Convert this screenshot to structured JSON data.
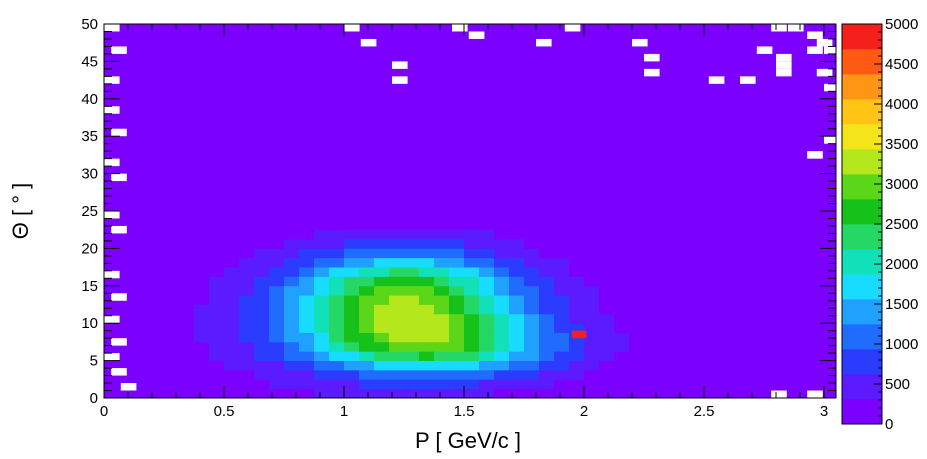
{
  "chart_data": {
    "type": "heatmap",
    "title": "",
    "xlabel": "P [ GeV/c ]",
    "ylabel": "Θ [ ° ]",
    "xlim": [
      0,
      3.05
    ],
    "ylim": [
      0,
      50
    ],
    "x_ticks": [
      "0",
      "0.5",
      "1",
      "1.5",
      "2",
      "2.5",
      "3"
    ],
    "y_ticks": [
      "0",
      "5",
      "10",
      "15",
      "20",
      "25",
      "30",
      "35",
      "40",
      "45",
      "50"
    ],
    "grid": false,
    "colorbar": {
      "min": 0,
      "max": 5000,
      "ticks": [
        "0",
        "500",
        "1000",
        "1500",
        "2000",
        "2500",
        "3000",
        "3500",
        "4000",
        "4500",
        "5000"
      ],
      "colors": [
        "#7b00ff",
        "#5c1bff",
        "#2c3cff",
        "#1f6cff",
        "#20a0ff",
        "#17dcff",
        "#12e0b8",
        "#25d866",
        "#16c11a",
        "#5cd618",
        "#b4e71c",
        "#f3e51a",
        "#ffc414",
        "#ff9515",
        "#ff5a14",
        "#f5201c"
      ]
    },
    "background_value": 60,
    "density_blobs": [
      {
        "p": 1.25,
        "theta": 13.5,
        "sigma_p": 0.32,
        "sigma_theta": 4.2,
        "amplitude": 2450
      },
      {
        "p": 1.38,
        "theta": 7.0,
        "sigma_p": 0.36,
        "sigma_theta": 2.8,
        "amplitude": 1750
      },
      {
        "p": 1.2,
        "theta": 10.0,
        "sigma_p": 0.55,
        "sigma_theta": 7.0,
        "amplitude": 700
      }
    ],
    "hot_bins": [
      {
        "p": 1.98,
        "theta": 8.5,
        "value": 5000
      }
    ],
    "empty_bins": [
      {
        "p": 0.0,
        "theta": 49.5
      },
      {
        "p": 0.03,
        "theta": 46.5
      },
      {
        "p": 0.0,
        "theta": 42.5
      },
      {
        "p": 0.0,
        "theta": 38.5
      },
      {
        "p": 0.03,
        "theta": 35.5
      },
      {
        "p": 0.0,
        "theta": 31.5
      },
      {
        "p": 0.03,
        "theta": 29.5
      },
      {
        "p": 0.0,
        "theta": 24.5
      },
      {
        "p": 0.03,
        "theta": 22.5
      },
      {
        "p": 0.0,
        "theta": 16.5
      },
      {
        "p": 0.03,
        "theta": 13.5
      },
      {
        "p": 0.0,
        "theta": 10.5
      },
      {
        "p": 0.03,
        "theta": 7.5
      },
      {
        "p": 0.0,
        "theta": 5.5
      },
      {
        "p": 0.03,
        "theta": 3.5
      },
      {
        "p": 0.07,
        "theta": 1.5
      },
      {
        "p": 1.0,
        "theta": 49.5
      },
      {
        "p": 1.07,
        "theta": 47.5
      },
      {
        "p": 1.2,
        "theta": 44.5
      },
      {
        "p": 1.2,
        "theta": 42.5
      },
      {
        "p": 1.45,
        "theta": 49.5
      },
      {
        "p": 1.52,
        "theta": 48.5
      },
      {
        "p": 1.8,
        "theta": 47.5
      },
      {
        "p": 1.92,
        "theta": 49.5
      },
      {
        "p": 2.2,
        "theta": 47.5
      },
      {
        "p": 2.25,
        "theta": 45.5
      },
      {
        "p": 2.25,
        "theta": 43.5
      },
      {
        "p": 2.52,
        "theta": 42.5
      },
      {
        "p": 2.65,
        "theta": 42.5
      },
      {
        "p": 2.78,
        "theta": 49.5
      },
      {
        "p": 2.85,
        "theta": 49.5
      },
      {
        "p": 2.72,
        "theta": 46.5
      },
      {
        "p": 2.8,
        "theta": 45.5
      },
      {
        "p": 2.8,
        "theta": 44.5
      },
      {
        "p": 2.8,
        "theta": 43.5
      },
      {
        "p": 2.93,
        "theta": 48.5
      },
      {
        "p": 2.97,
        "theta": 47.5
      },
      {
        "p": 3.0,
        "theta": 46.5
      },
      {
        "p": 2.93,
        "theta": 46.5
      },
      {
        "p": 2.97,
        "theta": 43.5
      },
      {
        "p": 3.0,
        "theta": 41.5
      },
      {
        "p": 3.0,
        "theta": 34.5
      },
      {
        "p": 2.93,
        "theta": 32.5
      },
      {
        "p": 2.78,
        "theta": 0.5
      },
      {
        "p": 2.93,
        "theta": 0.5
      }
    ]
  }
}
